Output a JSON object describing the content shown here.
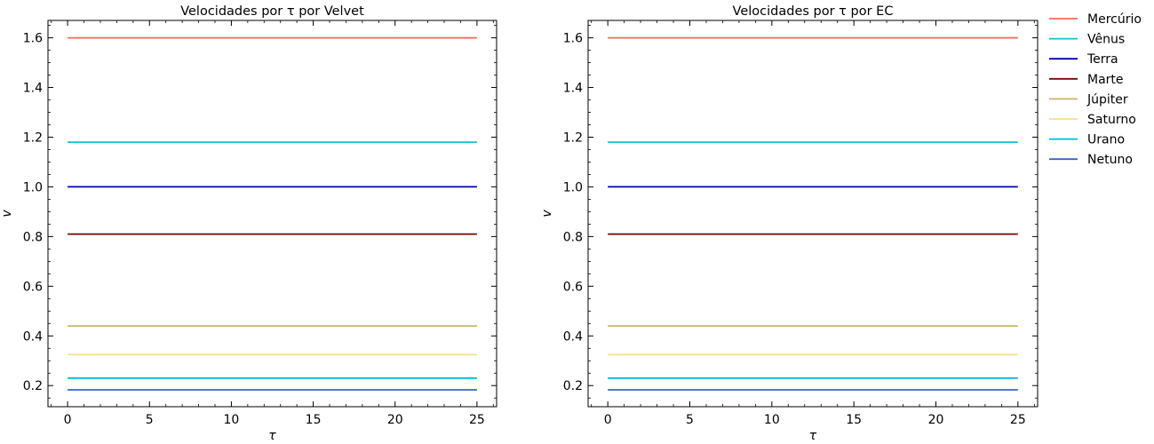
{
  "chart_data": [
    {
      "type": "line",
      "title": "Velocidades por τ por Velvet",
      "xlabel": "τ",
      "ylabel": "v",
      "xlim": [
        -1.2,
        26.2
      ],
      "ylim": [
        0.115,
        1.67
      ],
      "xticks": [
        0,
        5,
        10,
        15,
        20,
        25
      ],
      "xtick_labels": [
        "0",
        "5",
        "10",
        "15",
        "20",
        "25"
      ],
      "yticks": [
        0.2,
        0.4,
        0.6,
        0.8,
        1.0,
        1.2,
        1.4,
        1.6
      ],
      "ytick_labels": [
        "0.2",
        "0.4",
        "0.6",
        "0.8",
        "1.0",
        "1.2",
        "1.4",
        "1.6"
      ],
      "grid": false,
      "x": [
        0,
        25
      ],
      "series": [
        {
          "name": "Mercúrio",
          "color": "#f26b4f",
          "values": [
            1.6,
            1.6
          ]
        },
        {
          "name": "Vênus",
          "color": "#17becf",
          "values": [
            1.18,
            1.18
          ]
        },
        {
          "name": "Terra",
          "color": "#0000b3",
          "values": [
            1.0,
            1.0
          ]
        },
        {
          "name": "Marte",
          "color": "#800000",
          "values": [
            0.81,
            0.81
          ]
        },
        {
          "name": "Júpiter",
          "color": "#c8b56a",
          "values": [
            0.44,
            0.44
          ]
        },
        {
          "name": "Saturno",
          "color": "#f5e08c",
          "values": [
            0.325,
            0.325
          ]
        },
        {
          "name": "Urano",
          "color": "#00b8e8",
          "values": [
            0.23,
            0.23
          ]
        },
        {
          "name": "Netuno",
          "color": "#3a62c4",
          "values": [
            0.183,
            0.183
          ]
        }
      ]
    },
    {
      "type": "line",
      "title": "Velocidades por τ por EC",
      "xlabel": "τ",
      "ylabel": "v",
      "xlim": [
        -1.2,
        26.2
      ],
      "ylim": [
        0.115,
        1.67
      ],
      "xticks": [
        0,
        5,
        10,
        15,
        20,
        25
      ],
      "xtick_labels": [
        "0",
        "5",
        "10",
        "15",
        "20",
        "25"
      ],
      "yticks": [
        0.2,
        0.4,
        0.6,
        0.8,
        1.0,
        1.2,
        1.4,
        1.6
      ],
      "ytick_labels": [
        "0.2",
        "0.4",
        "0.6",
        "0.8",
        "1.0",
        "1.2",
        "1.4",
        "1.6"
      ],
      "grid": false,
      "legend": "outside-right",
      "x": [
        0,
        25
      ],
      "series": [
        {
          "name": "Mercúrio",
          "color": "#f26b4f",
          "values": [
            1.6,
            1.6
          ]
        },
        {
          "name": "Vênus",
          "color": "#17becf",
          "values": [
            1.18,
            1.18
          ]
        },
        {
          "name": "Terra",
          "color": "#0000b3",
          "values": [
            1.0,
            1.0
          ]
        },
        {
          "name": "Marte",
          "color": "#800000",
          "values": [
            0.81,
            0.81
          ]
        },
        {
          "name": "Júpiter",
          "color": "#c8b56a",
          "values": [
            0.44,
            0.44
          ]
        },
        {
          "name": "Saturno",
          "color": "#f5e08c",
          "values": [
            0.325,
            0.325
          ]
        },
        {
          "name": "Urano",
          "color": "#00b8e8",
          "values": [
            0.23,
            0.23
          ]
        },
        {
          "name": "Netuno",
          "color": "#3a62c4",
          "values": [
            0.183,
            0.183
          ]
        }
      ]
    }
  ]
}
